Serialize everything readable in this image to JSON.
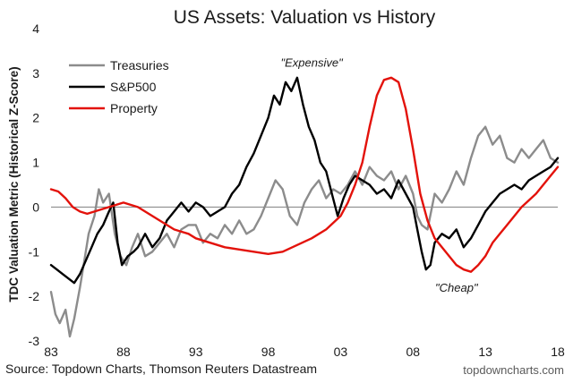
{
  "chart_data": {
    "type": "line",
    "title": "US Assets: Valuation vs History",
    "xlabel": "",
    "ylabel": "TDC Valuation Metric (Historical Z-Score)",
    "xlim": [
      1983,
      2018
    ],
    "ylim": [
      -3,
      4
    ],
    "xticks": [
      {
        "value": 1983,
        "label": "83"
      },
      {
        "value": 1988,
        "label": "88"
      },
      {
        "value": 1993,
        "label": "93"
      },
      {
        "value": 1998,
        "label": "98"
      },
      {
        "value": 2003,
        "label": "03"
      },
      {
        "value": 2008,
        "label": "08"
      },
      {
        "value": 2013,
        "label": "13"
      },
      {
        "value": 2018,
        "label": "18"
      }
    ],
    "yticks": [
      -3,
      -2,
      -1,
      0,
      1,
      2,
      3,
      4
    ],
    "grid": false,
    "legend": "top-left",
    "series": [
      {
        "name": "Treasuries",
        "color": "#8c8c8c",
        "x": [
          1983.0,
          1983.3,
          1983.6,
          1984.0,
          1984.3,
          1984.6,
          1985.0,
          1985.3,
          1985.6,
          1986.0,
          1986.3,
          1986.6,
          1987.0,
          1987.4,
          1987.8,
          1988.2,
          1988.6,
          1989.0,
          1989.5,
          1990.0,
          1990.5,
          1991.0,
          1991.5,
          1992.0,
          1992.5,
          1993.0,
          1993.5,
          1994.0,
          1994.5,
          1995.0,
          1995.5,
          1996.0,
          1996.5,
          1997.0,
          1997.5,
          1998.0,
          1998.5,
          1999.0,
          1999.5,
          2000.0,
          2000.5,
          2001.0,
          2001.5,
          2002.0,
          2002.5,
          2003.0,
          2003.5,
          2004.0,
          2004.5,
          2005.0,
          2005.5,
          2006.0,
          2006.5,
          2007.0,
          2007.5,
          2008.0,
          2008.3,
          2008.6,
          2009.0,
          2009.5,
          2010.0,
          2010.5,
          2011.0,
          2011.5,
          2012.0,
          2012.5,
          2013.0,
          2013.5,
          2014.0,
          2014.5,
          2015.0,
          2015.5,
          2016.0,
          2016.5,
          2017.0,
          2017.5,
          2018.0
        ],
        "values": [
          -1.9,
          -2.4,
          -2.6,
          -2.3,
          -2.9,
          -2.5,
          -1.8,
          -1.2,
          -0.6,
          -0.2,
          0.4,
          0.1,
          0.3,
          -0.6,
          -1.1,
          -1.3,
          -0.9,
          -0.6,
          -1.1,
          -1.0,
          -0.8,
          -0.6,
          -0.9,
          -0.5,
          -0.4,
          -0.4,
          -0.8,
          -0.6,
          -0.7,
          -0.4,
          -0.6,
          -0.3,
          -0.6,
          -0.5,
          -0.2,
          0.2,
          0.6,
          0.4,
          -0.2,
          -0.4,
          0.1,
          0.4,
          0.6,
          0.2,
          0.4,
          0.3,
          0.5,
          0.8,
          0.5,
          0.9,
          0.7,
          0.6,
          0.8,
          0.4,
          0.7,
          0.3,
          -0.2,
          -0.4,
          -0.5,
          0.3,
          0.1,
          0.4,
          0.8,
          0.5,
          1.1,
          1.6,
          1.8,
          1.4,
          1.6,
          1.1,
          1.0,
          1.3,
          1.1,
          1.3,
          1.5,
          1.1,
          1.0
        ]
      },
      {
        "name": "S&P500",
        "color": "#000000",
        "x": [
          1983.0,
          1983.4,
          1983.8,
          1984.2,
          1984.6,
          1985.0,
          1985.4,
          1985.8,
          1986.2,
          1986.6,
          1987.0,
          1987.3,
          1987.6,
          1987.9,
          1988.3,
          1988.7,
          1989.0,
          1989.5,
          1990.0,
          1990.5,
          1991.0,
          1991.5,
          1992.0,
          1992.5,
          1993.0,
          1993.5,
          1994.0,
          1994.5,
          1995.0,
          1995.5,
          1996.0,
          1996.5,
          1997.0,
          1997.5,
          1998.0,
          1998.4,
          1998.8,
          1999.2,
          1999.6,
          2000.0,
          2000.4,
          2000.8,
          2001.2,
          2001.6,
          2002.0,
          2002.4,
          2002.8,
          2003.2,
          2003.6,
          2004.0,
          2004.5,
          2005.0,
          2005.5,
          2006.0,
          2006.5,
          2007.0,
          2007.5,
          2008.0,
          2008.3,
          2008.6,
          2008.9,
          2009.2,
          2009.5,
          2010.0,
          2010.5,
          2011.0,
          2011.5,
          2012.0,
          2012.5,
          2013.0,
          2013.5,
          2014.0,
          2014.5,
          2015.0,
          2015.5,
          2016.0,
          2016.5,
          2017.0,
          2017.5,
          2018.0
        ],
        "values": [
          -1.3,
          -1.4,
          -1.5,
          -1.6,
          -1.7,
          -1.5,
          -1.2,
          -0.9,
          -0.6,
          -0.4,
          -0.1,
          0.1,
          -0.8,
          -1.3,
          -1.1,
          -1.0,
          -0.9,
          -0.6,
          -0.9,
          -0.7,
          -0.3,
          -0.1,
          0.1,
          -0.1,
          0.1,
          0.0,
          -0.2,
          -0.1,
          0.0,
          0.3,
          0.5,
          0.9,
          1.2,
          1.6,
          2.0,
          2.5,
          2.3,
          2.8,
          2.6,
          2.9,
          2.3,
          1.8,
          1.5,
          1.0,
          0.8,
          0.3,
          -0.2,
          0.2,
          0.5,
          0.7,
          0.6,
          0.5,
          0.3,
          0.4,
          0.2,
          0.6,
          0.3,
          0.0,
          -0.5,
          -1.0,
          -1.4,
          -1.3,
          -0.8,
          -0.6,
          -0.7,
          -0.5,
          -0.9,
          -0.7,
          -0.4,
          -0.1,
          0.1,
          0.3,
          0.4,
          0.5,
          0.4,
          0.6,
          0.7,
          0.8,
          0.9,
          1.1
        ]
      },
      {
        "name": "Property",
        "color": "#e3120b",
        "x": [
          1983.0,
          1983.5,
          1984.0,
          1984.5,
          1985.0,
          1985.5,
          1986.0,
          1986.5,
          1987.0,
          1987.5,
          1988.0,
          1988.5,
          1989.0,
          1989.5,
          1990.0,
          1990.5,
          1991.0,
          1991.5,
          1992.0,
          1992.5,
          1993.0,
          1994.0,
          1995.0,
          1996.0,
          1997.0,
          1998.0,
          1999.0,
          2000.0,
          2001.0,
          2002.0,
          2003.0,
          2003.5,
          2004.0,
          2004.5,
          2005.0,
          2005.5,
          2006.0,
          2006.5,
          2007.0,
          2007.5,
          2008.0,
          2008.5,
          2009.0,
          2009.5,
          2010.0,
          2010.5,
          2011.0,
          2011.5,
          2012.0,
          2012.5,
          2013.0,
          2013.5,
          2014.0,
          2014.5,
          2015.0,
          2015.5,
          2016.0,
          2016.5,
          2017.0,
          2017.5,
          2018.0
        ],
        "values": [
          0.4,
          0.35,
          0.2,
          0.0,
          -0.1,
          -0.15,
          -0.1,
          -0.05,
          0.0,
          0.05,
          0.1,
          0.05,
          0.0,
          -0.1,
          -0.2,
          -0.3,
          -0.4,
          -0.5,
          -0.55,
          -0.6,
          -0.7,
          -0.8,
          -0.9,
          -0.95,
          -1.0,
          -1.05,
          -1.0,
          -0.85,
          -0.7,
          -0.5,
          -0.2,
          0.1,
          0.5,
          1.0,
          1.8,
          2.5,
          2.85,
          2.9,
          2.8,
          2.2,
          1.3,
          0.3,
          -0.3,
          -0.7,
          -0.9,
          -1.1,
          -1.3,
          -1.4,
          -1.45,
          -1.3,
          -1.1,
          -0.8,
          -0.6,
          -0.4,
          -0.2,
          0.0,
          0.15,
          0.3,
          0.5,
          0.7,
          0.9
        ]
      }
    ],
    "annotations": [
      {
        "text": "\"Expensive\"",
        "x": 2001.0,
        "y": 3.15
      },
      {
        "text": "\"Cheap\"",
        "x": 2011.0,
        "y": -1.9
      }
    ]
  },
  "footer": {
    "source": "Source: Topdown Charts, Thomson Reuters Datastream",
    "brand": "topdowncharts.com"
  }
}
